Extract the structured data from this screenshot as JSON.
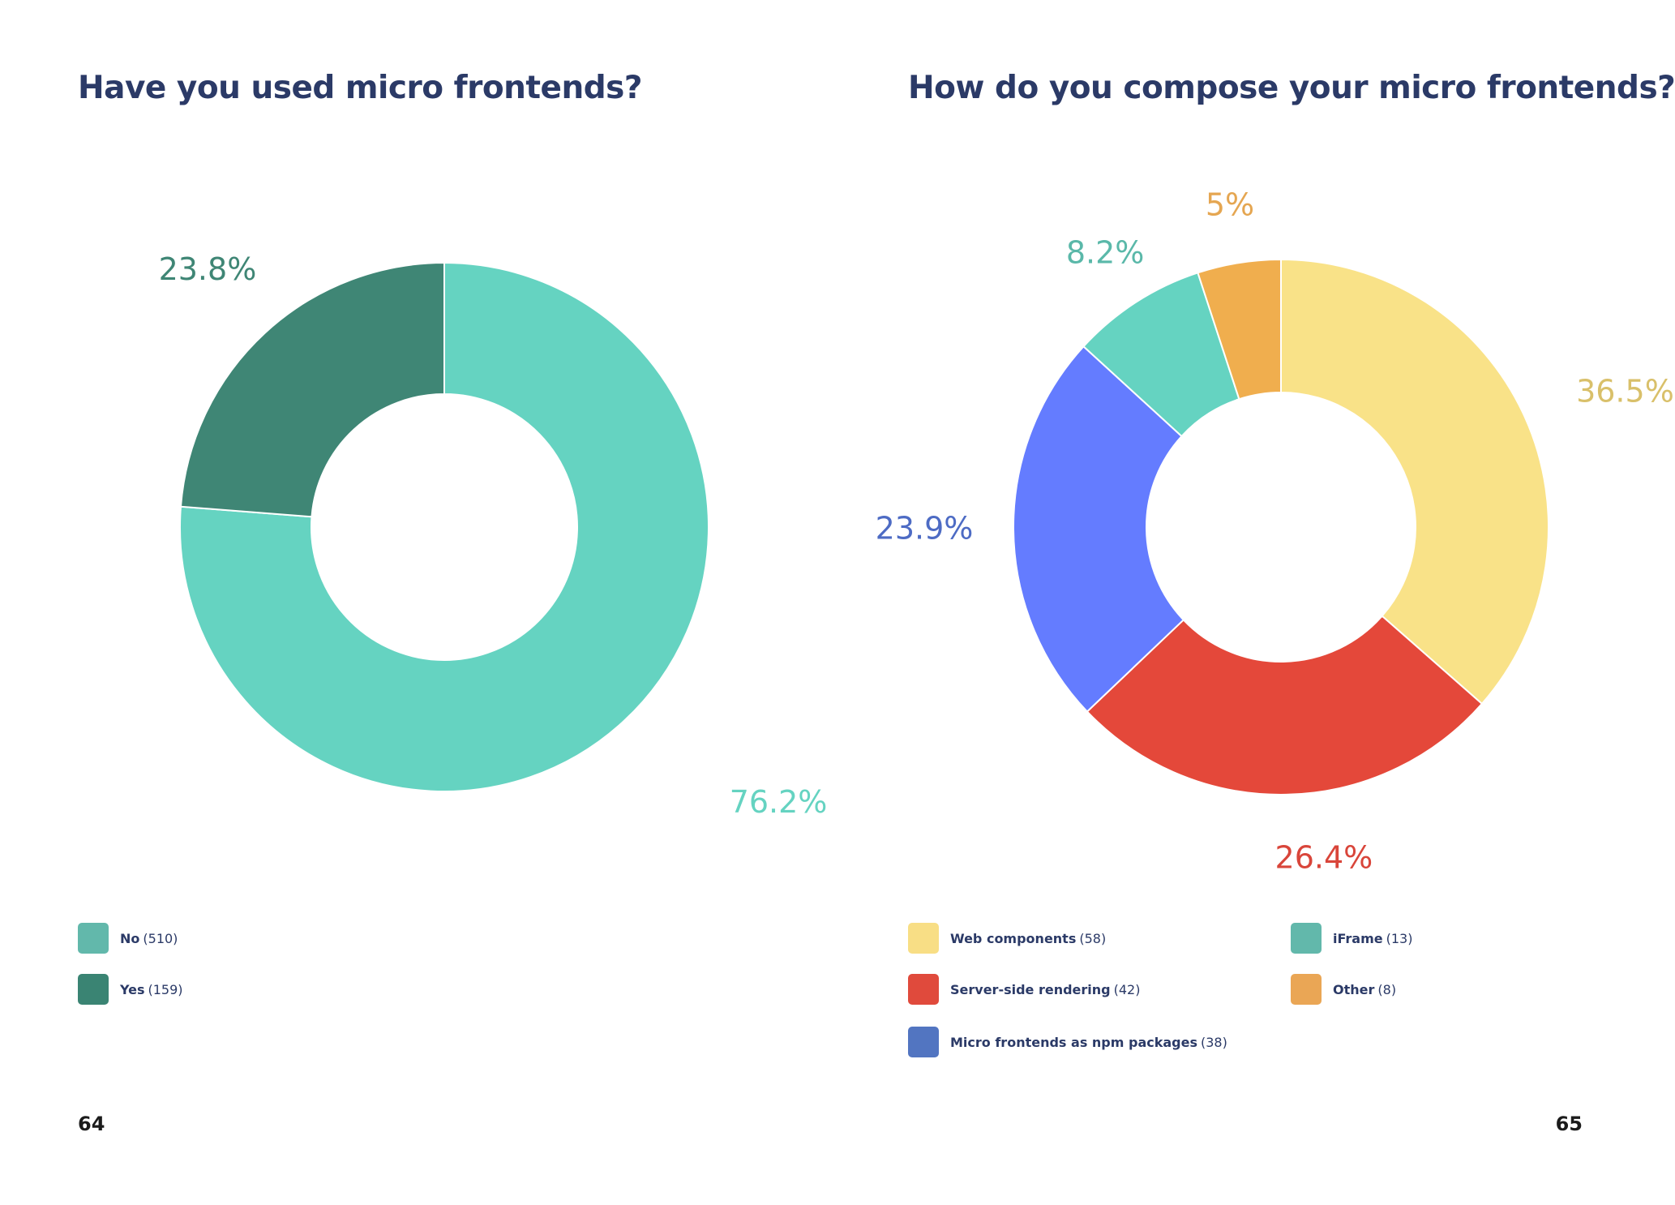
{
  "chart_data": [
    {
      "type": "pie",
      "title": "Have you used micro frontends?",
      "slices": [
        {
          "name": "No",
          "count": 510,
          "percent": 76.2,
          "label": "76.2%",
          "color": "#65d3c1",
          "legend_color": "#62b8ab"
        },
        {
          "name": "Yes",
          "count": 159,
          "percent": 23.8,
          "label": "23.8%",
          "color": "#3f8675",
          "legend_color": "#3a8473"
        }
      ],
      "legend": [
        {
          "name": "No",
          "count_text": "(510)"
        },
        {
          "name": "Yes",
          "count_text": "(159)"
        }
      ],
      "legend_placement": "bottom-left"
    },
    {
      "type": "pie",
      "title": "How do you compose your micro frontends?",
      "slices": [
        {
          "name": "Web components",
          "count": 58,
          "percent": 36.5,
          "label": "36.5%",
          "color": "#f9e288",
          "label_color": "#d9c06a",
          "legend_color": "#f8de85"
        },
        {
          "name": "Server-side rendering",
          "count": 42,
          "percent": 26.4,
          "label": "26.4%",
          "color": "#e4483a",
          "label_color": "#d9453a",
          "legend_color": "#e04a3c"
        },
        {
          "name": "Micro frontends as npm packages",
          "count": 38,
          "percent": 23.9,
          "label": "23.9%",
          "color": "#647cff",
          "label_color": "#4d6bc4",
          "legend_color": "#5275c1"
        },
        {
          "name": "iFrame",
          "count": 13,
          "percent": 8.2,
          "label": "8.2%",
          "color": "#65d3c1",
          "label_color": "#5ab8a9",
          "legend_color": "#62b8ab"
        },
        {
          "name": "Other",
          "count": 8,
          "percent": 5,
          "label": "5%",
          "color": "#f0ae4e",
          "label_color": "#e5a651",
          "legend_color": "#eaa655"
        }
      ],
      "legend": [
        {
          "name": "Web components",
          "count_text": "(58)"
        },
        {
          "name": "Server-side rendering",
          "count_text": "(42)"
        },
        {
          "name": "Micro frontends as npm packages",
          "count_text": "(38)"
        },
        {
          "name": "iFrame",
          "count_text": "(13)"
        },
        {
          "name": "Other",
          "count_text": "(8)"
        }
      ],
      "legend_placement": "bottom"
    }
  ],
  "pages": {
    "left_number": "64",
    "right_number": "65"
  }
}
